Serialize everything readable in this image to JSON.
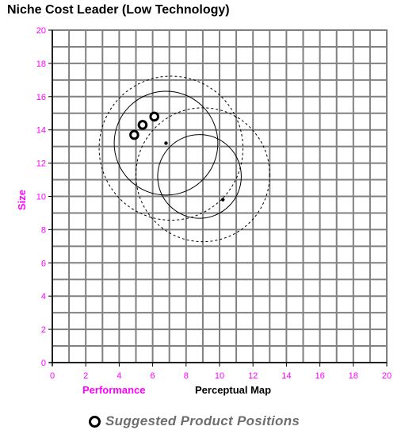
{
  "chart_data": {
    "type": "scatter",
    "title": "Niche Cost Leader (Low Technology)",
    "xlabel": "Performance",
    "ylabel": "Size",
    "map_label": "Perceptual Map",
    "xlim": [
      0,
      20
    ],
    "ylim": [
      0,
      20
    ],
    "x_ticks": [
      "0",
      "2",
      "4",
      "6",
      "8",
      "10",
      "12",
      "14",
      "16",
      "18",
      "20"
    ],
    "y_ticks": [
      "0",
      "2",
      "4",
      "6",
      "8",
      "10",
      "12",
      "14",
      "16",
      "18",
      "20"
    ],
    "grid": true,
    "colors": {
      "axis_text": "#ff00ff",
      "grid": "#808080",
      "marks": "#000000",
      "legend_text": "#6e6e6e"
    },
    "segment_centers": [
      {
        "x": 6.8,
        "y": 13.2
      },
      {
        "x": 10.2,
        "y": 9.8
      }
    ],
    "inner_circles": [
      {
        "cx": 6.8,
        "cy": 13.2,
        "r": 3.1
      },
      {
        "cx": 8.8,
        "cy": 11.2,
        "r": 2.5
      }
    ],
    "outer_circles": [
      {
        "cx": 7.1,
        "cy": 12.9,
        "r": 4.3
      },
      {
        "cx": 9.0,
        "cy": 11.3,
        "r": 4.0
      }
    ],
    "suggested_positions": [
      {
        "x": 4.9,
        "y": 13.7
      },
      {
        "x": 5.4,
        "y": 14.3
      },
      {
        "x": 6.1,
        "y": 14.8
      }
    ],
    "legend": {
      "label": "Suggested Product Positions",
      "placement": "bottom-center"
    }
  }
}
